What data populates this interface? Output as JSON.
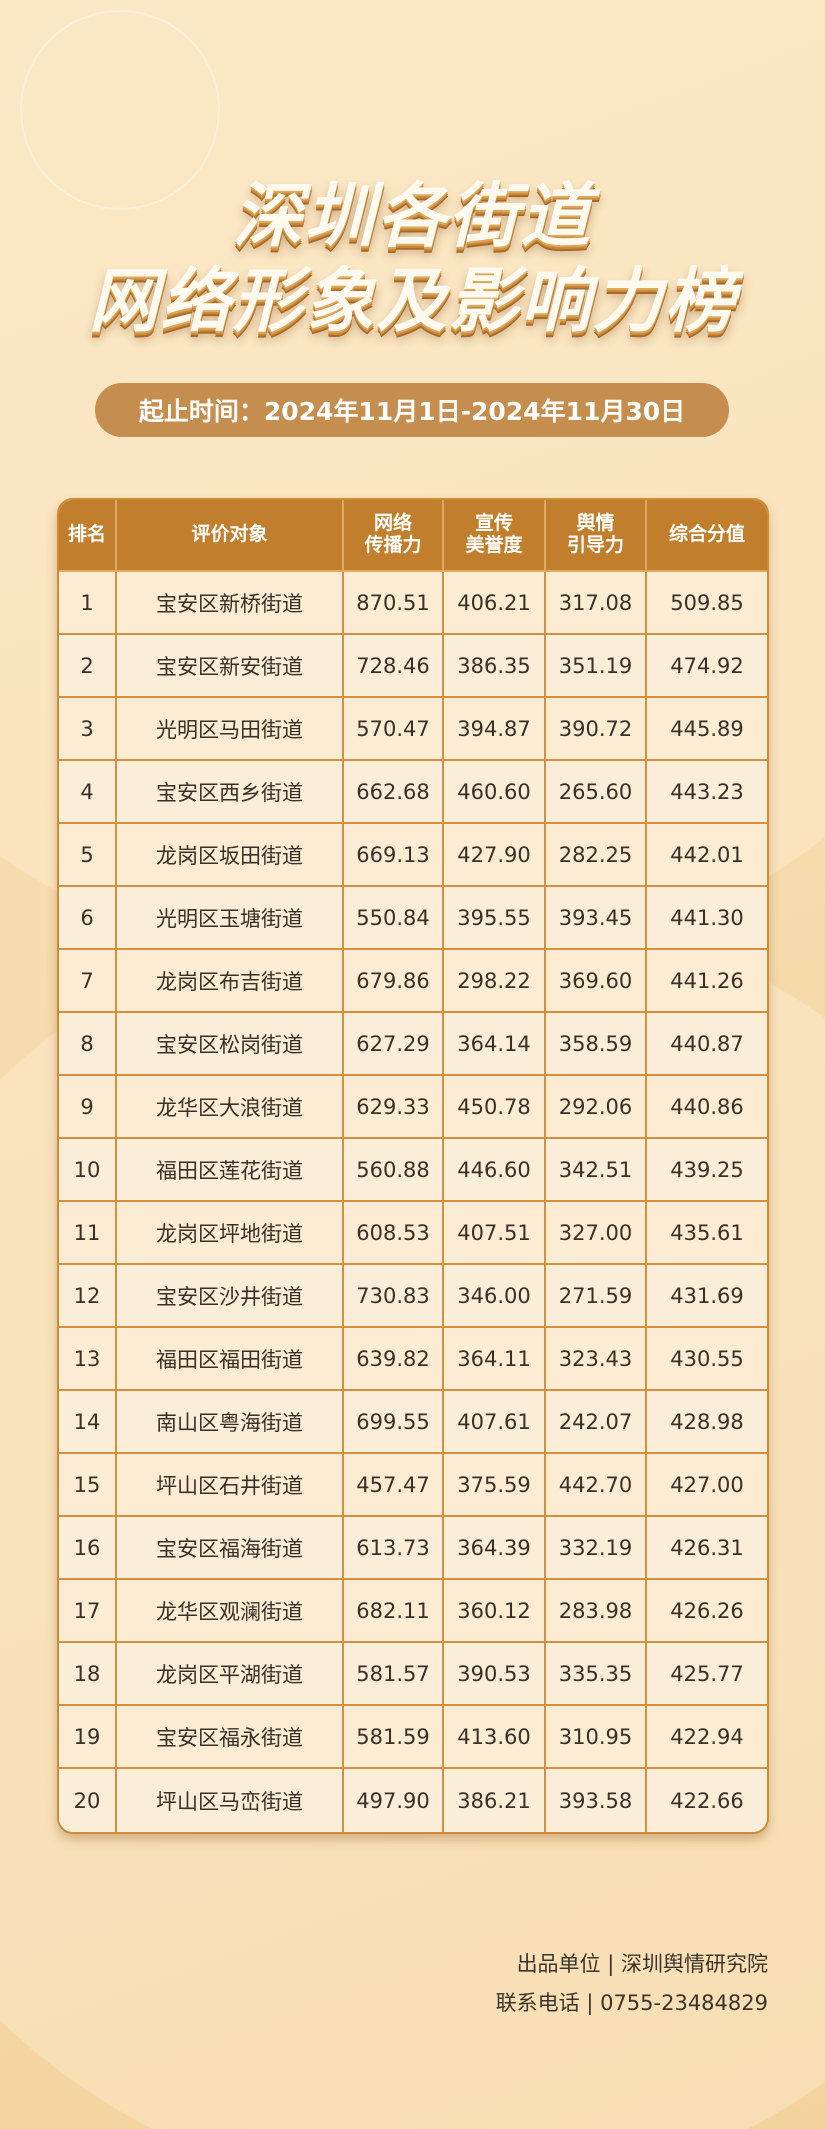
{
  "title": {
    "line1": "深圳各街道",
    "line2": "网络形象及影响力榜"
  },
  "date_range": "起止时间：2024年11月1日-2024年11月30日",
  "colors": {
    "header": "#c17f2e",
    "border": "#d4903f",
    "row_bg": "#fcecd3",
    "pill": "#c68e4e"
  },
  "table": {
    "headers": [
      "排名",
      "评价对象",
      "网络\n传播力",
      "宣传\n美誉度",
      "舆情\n引导力",
      "综合分值"
    ],
    "rows": [
      [
        "1",
        "宝安区新桥街道",
        "870.51",
        "406.21",
        "317.08",
        "509.85"
      ],
      [
        "2",
        "宝安区新安街道",
        "728.46",
        "386.35",
        "351.19",
        "474.92"
      ],
      [
        "3",
        "光明区马田街道",
        "570.47",
        "394.87",
        "390.72",
        "445.89"
      ],
      [
        "4",
        "宝安区西乡街道",
        "662.68",
        "460.60",
        "265.60",
        "443.23"
      ],
      [
        "5",
        "龙岗区坂田街道",
        "669.13",
        "427.90",
        "282.25",
        "442.01"
      ],
      [
        "6",
        "光明区玉塘街道",
        "550.84",
        "395.55",
        "393.45",
        "441.30"
      ],
      [
        "7",
        "龙岗区布吉街道",
        "679.86",
        "298.22",
        "369.60",
        "441.26"
      ],
      [
        "8",
        "宝安区松岗街道",
        "627.29",
        "364.14",
        "358.59",
        "440.87"
      ],
      [
        "9",
        "龙华区大浪街道",
        "629.33",
        "450.78",
        "292.06",
        "440.86"
      ],
      [
        "10",
        "福田区莲花街道",
        "560.88",
        "446.60",
        "342.51",
        "439.25"
      ],
      [
        "11",
        "龙岗区坪地街道",
        "608.53",
        "407.51",
        "327.00",
        "435.61"
      ],
      [
        "12",
        "宝安区沙井街道",
        "730.83",
        "346.00",
        "271.59",
        "431.69"
      ],
      [
        "13",
        "福田区福田街道",
        "639.82",
        "364.11",
        "323.43",
        "430.55"
      ],
      [
        "14",
        "南山区粤海街道",
        "699.55",
        "407.61",
        "242.07",
        "428.98"
      ],
      [
        "15",
        "坪山区石井街道",
        "457.47",
        "375.59",
        "442.70",
        "427.00"
      ],
      [
        "16",
        "宝安区福海街道",
        "613.73",
        "364.39",
        "332.19",
        "426.31"
      ],
      [
        "17",
        "龙华区观澜街道",
        "682.11",
        "360.12",
        "283.98",
        "426.26"
      ],
      [
        "18",
        "龙岗区平湖街道",
        "581.57",
        "390.53",
        "335.35",
        "425.77"
      ],
      [
        "19",
        "宝安区福永街道",
        "581.59",
        "413.60",
        "310.95",
        "422.94"
      ],
      [
        "20",
        "坪山区马峦街道",
        "497.90",
        "386.21",
        "393.58",
        "422.66"
      ]
    ]
  },
  "footer": {
    "producer": "出品单位 | 深圳舆情研究院",
    "phone": "联系电话 | 0755-23484829"
  }
}
